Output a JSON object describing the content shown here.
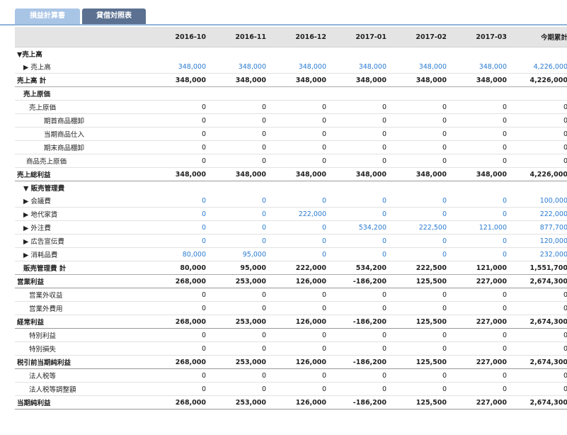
{
  "tabs": [
    {
      "label": "損益計算書",
      "active": true
    },
    {
      "label": "貸借対照表",
      "active": false
    }
  ],
  "columns": [
    "",
    "2016-10",
    "2016-11",
    "2016-12",
    "2017-01",
    "2017-02",
    "2017-03",
    "今期累計"
  ],
  "colors": {
    "link": "#2a7bd1",
    "tab_active": "#a9c5e6",
    "tab_inactive": "#5c7191",
    "header_bg": "#e4e4e4"
  },
  "rows": [
    {
      "label": "▼売上高",
      "type": "section",
      "indent": 0,
      "values": []
    },
    {
      "label": "▶ 売上高",
      "type": "link",
      "indent": 1,
      "values": [
        "348,000",
        "348,000",
        "348,000",
        "348,000",
        "348,000",
        "348,000",
        "4,226,000"
      ]
    },
    {
      "label": "売上高 計",
      "type": "total",
      "indent": 0,
      "values": [
        "348,000",
        "348,000",
        "348,000",
        "348,000",
        "348,000",
        "348,000",
        "4,226,000"
      ]
    },
    {
      "label": "売上原価",
      "type": "group",
      "indent": 1,
      "values": []
    },
    {
      "label": "売上原価",
      "type": "plain",
      "indent": 2,
      "values": [
        "0",
        "0",
        "0",
        "0",
        "0",
        "0",
        "0"
      ]
    },
    {
      "label": "期首商品棚卸",
      "type": "plain",
      "indent": 3,
      "values": [
        "0",
        "0",
        "0",
        "0",
        "0",
        "0",
        "0"
      ]
    },
    {
      "label": "当期商品仕入",
      "type": "plain",
      "indent": 3,
      "values": [
        "0",
        "0",
        "0",
        "0",
        "0",
        "0",
        "0"
      ]
    },
    {
      "label": "期末商品棚卸",
      "type": "plain",
      "indent": 3,
      "values": [
        "0",
        "0",
        "0",
        "0",
        "0",
        "0",
        "0"
      ]
    },
    {
      "label": "商品売上原価",
      "type": "plain",
      "indent": 15,
      "values": [
        "0",
        "0",
        "0",
        "0",
        "0",
        "0",
        "0"
      ]
    },
    {
      "label": "売上総利益",
      "type": "major",
      "indent": 0,
      "values": [
        "348,000",
        "348,000",
        "348,000",
        "348,000",
        "348,000",
        "348,000",
        "4,226,000"
      ]
    },
    {
      "label": "▼ 販売管理費",
      "type": "section",
      "indent": 1,
      "values": []
    },
    {
      "label": "▶ 会議費",
      "type": "link",
      "indent": 1,
      "values": [
        "0",
        "0",
        "0",
        "0",
        "0",
        "0",
        "100,000"
      ]
    },
    {
      "label": "▶ 地代家賃",
      "type": "link",
      "indent": 1,
      "values": [
        "0",
        "0",
        "222,000",
        "0",
        "0",
        "0",
        "222,000"
      ]
    },
    {
      "label": "▶ 外注費",
      "type": "link",
      "indent": 1,
      "values": [
        "0",
        "0",
        "0",
        "534,200",
        "222,500",
        "121,000",
        "877,700"
      ]
    },
    {
      "label": "▶ 広告宣伝費",
      "type": "link",
      "indent": 1,
      "values": [
        "0",
        "0",
        "0",
        "0",
        "0",
        "0",
        "120,000"
      ]
    },
    {
      "label": "▶ 消耗品費",
      "type": "link",
      "indent": 1,
      "values": [
        "80,000",
        "95,000",
        "0",
        "0",
        "0",
        "0",
        "232,000"
      ]
    },
    {
      "label": "販売管理費 計",
      "type": "total",
      "indent": 1,
      "values": [
        "80,000",
        "95,000",
        "222,000",
        "534,200",
        "222,500",
        "121,000",
        "1,551,700"
      ]
    },
    {
      "label": "営業利益",
      "type": "major",
      "indent": 0,
      "values": [
        "268,000",
        "253,000",
        "126,000",
        "-186,200",
        "125,500",
        "227,000",
        "2,674,300"
      ]
    },
    {
      "label": "営業外収益",
      "type": "plain",
      "indent": 2,
      "values": [
        "0",
        "0",
        "0",
        "0",
        "0",
        "0",
        "0"
      ]
    },
    {
      "label": "営業外費用",
      "type": "plain",
      "indent": 2,
      "values": [
        "0",
        "0",
        "0",
        "0",
        "0",
        "0",
        "0"
      ]
    },
    {
      "label": "経常利益",
      "type": "major",
      "indent": 0,
      "values": [
        "268,000",
        "253,000",
        "126,000",
        "-186,200",
        "125,500",
        "227,000",
        "2,674,300"
      ]
    },
    {
      "label": "特別利益",
      "type": "plain",
      "indent": 2,
      "values": [
        "0",
        "0",
        "0",
        "0",
        "0",
        "0",
        "0"
      ]
    },
    {
      "label": "特別損失",
      "type": "plain",
      "indent": 2,
      "values": [
        "0",
        "0",
        "0",
        "0",
        "0",
        "0",
        "0"
      ]
    },
    {
      "label": "税引前当期純利益",
      "type": "major",
      "indent": 0,
      "values": [
        "268,000",
        "253,000",
        "126,000",
        "-186,200",
        "125,500",
        "227,000",
        "2,674,300"
      ]
    },
    {
      "label": "法人税等",
      "type": "plain",
      "indent": 2,
      "values": [
        "0",
        "0",
        "0",
        "0",
        "0",
        "0",
        "0"
      ]
    },
    {
      "label": "法人税等調整額",
      "type": "plain",
      "indent": 2,
      "values": [
        "0",
        "0",
        "0",
        "0",
        "0",
        "0",
        "0"
      ]
    },
    {
      "label": "当期純利益",
      "type": "major",
      "indent": 0,
      "values": [
        "268,000",
        "253,000",
        "126,000",
        "-186,200",
        "125,500",
        "227,000",
        "2,674,300"
      ]
    }
  ]
}
